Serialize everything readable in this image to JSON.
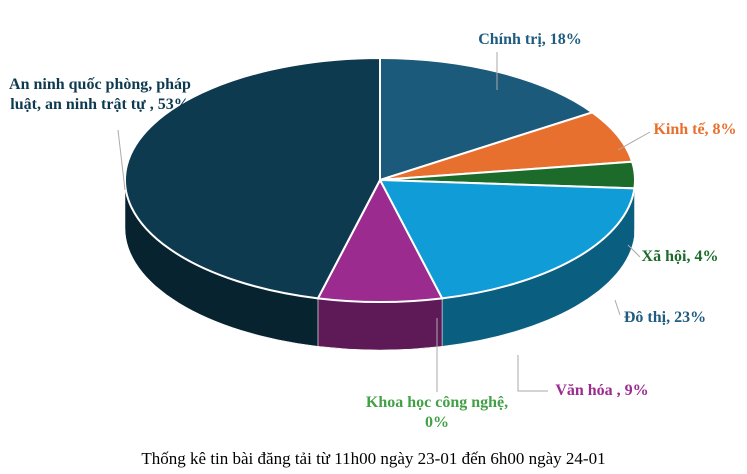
{
  "chart_data": {
    "type": "pie3d",
    "title": "Thống kê tin bài đăng tải từ 11h00 ngày 23-01 đến 6h00 ngày 24-01",
    "values": [
      18,
      8,
      4,
      23,
      9,
      0,
      53
    ],
    "value_labels": [
      "Chính trị, 18%",
      "Kinh tế, 8%",
      "Xã hội, 4%",
      "Đô thị, 23%",
      "Văn hóa , 9%",
      "Khoa học công nghệ, 0%",
      "An ninh quốc phòng, pháp luật, an ninh trật tự , 53%"
    ],
    "colors": [
      "#1c5a7b",
      "#e8702e",
      "#1c6b2a",
      "#109cd6",
      "#9b2b8f",
      "#43a047",
      "#0e3a50"
    ],
    "label_colors": [
      "#1f5c80",
      "#e8702e",
      "#1c6b2a",
      "#1f5c80",
      "#9b2b8f",
      "#43a047",
      "#0e3a50"
    ]
  }
}
